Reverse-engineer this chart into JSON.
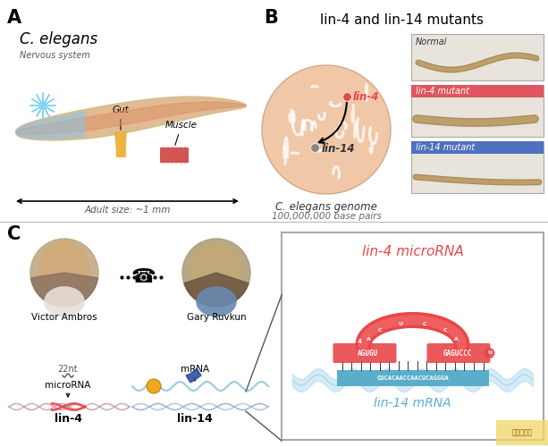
{
  "bg_color": "#ffffff",
  "section_A_label": "A",
  "section_B_label": "B",
  "section_C_label": "C",
  "title_B": "lin-4 and lin-14 mutants",
  "elegans_title": "C. elegans",
  "nervous_system_label": "Nervous system",
  "gut_label": "Gut",
  "muscle_label": "Muscle",
  "adult_size_label": "Adult size: ~1 mm",
  "genome_label": "C. elegans genome",
  "genome_sublabel": "100,000,000 base pairs",
  "lin4_label": "lin-4",
  "lin14_label": "lin-14",
  "normal_label": "Normal",
  "lin4_mutant_label": "lin-4 mutant",
  "lin14_mutant_label": "lin-14 mutant",
  "victor_label": "Victor Ambros",
  "gary_label": "Gary Ruvkun",
  "nt_label": "22nt",
  "microRNA_label": "microRNA",
  "mRNA_label": "mRNA",
  "lin4_bottom_label": "lin-4",
  "lin14_bottom_label": "lin-14",
  "microrna_box_title": "lin-4 microRNA",
  "mrna_box_label": "lin-14 mRNA",
  "mrna_seq": "CUCACAACCAACUCAGGGA",
  "red_color": "#e8474a",
  "blue_color": "#5babd4",
  "salmon_color": "#f0c8a8",
  "gray_text": "#666666",
  "lin4_red": "#e05050",
  "lin4_mutant_bar": "#e05560",
  "lin14_mutant_bar": "#5070c0",
  "worm_tan": "#c8a870",
  "worm_dark": "#9a7840"
}
